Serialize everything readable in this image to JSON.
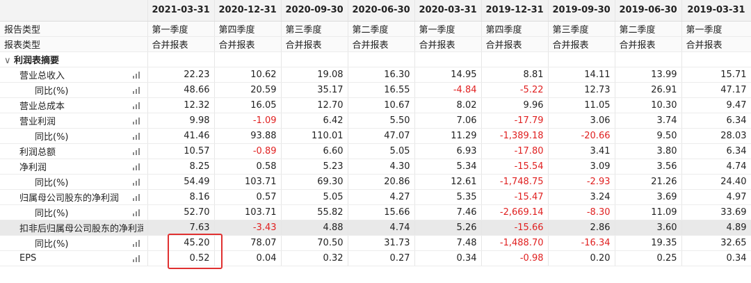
{
  "header": {
    "dates": [
      "2021-03-31",
      "2020-12-31",
      "2020-09-30",
      "2020-06-30",
      "2020-03-31",
      "2019-12-31",
      "2019-09-30",
      "2019-06-30",
      "2019-03-31"
    ]
  },
  "meta_rows": [
    {
      "label": "报告类型",
      "values": [
        "第一季度",
        "第四季度",
        "第三季度",
        "第二季度",
        "第一季度",
        "第四季度",
        "第三季度",
        "第二季度",
        "第一季度"
      ]
    },
    {
      "label": "报表类型",
      "values": [
        "合并报表",
        "合并报表",
        "合并报表",
        "合并报表",
        "合并报表",
        "合并报表",
        "合并报表",
        "合并报表",
        "合并报表"
      ]
    }
  ],
  "section": {
    "caret": "∨",
    "label": "利润表摘要"
  },
  "rows": [
    {
      "label": "营业总收入",
      "indent": 1,
      "values": [
        "22.23",
        "10.62",
        "19.08",
        "16.30",
        "14.95",
        "8.81",
        "14.11",
        "13.99",
        "15.71"
      ]
    },
    {
      "label": "同比(%)",
      "indent": 2,
      "values": [
        "48.66",
        "20.59",
        "35.17",
        "16.55",
        "-4.84",
        "-5.22",
        "12.73",
        "26.91",
        "47.17"
      ]
    },
    {
      "label": "营业总成本",
      "indent": 1,
      "values": [
        "12.32",
        "16.05",
        "12.70",
        "10.67",
        "8.02",
        "9.96",
        "11.05",
        "10.30",
        "9.47"
      ]
    },
    {
      "label": "营业利润",
      "indent": 1,
      "values": [
        "9.98",
        "-1.09",
        "6.42",
        "5.50",
        "7.06",
        "-17.79",
        "3.06",
        "3.74",
        "6.34"
      ]
    },
    {
      "label": "同比(%)",
      "indent": 2,
      "values": [
        "41.46",
        "93.88",
        "110.01",
        "47.07",
        "11.29",
        "-1,389.18",
        "-20.66",
        "9.50",
        "28.03"
      ]
    },
    {
      "label": "利润总额",
      "indent": 1,
      "values": [
        "10.57",
        "-0.89",
        "6.60",
        "5.05",
        "6.93",
        "-17.80",
        "3.41",
        "3.80",
        "6.34"
      ]
    },
    {
      "label": "净利润",
      "indent": 1,
      "values": [
        "8.25",
        "0.58",
        "5.23",
        "4.30",
        "5.34",
        "-15.54",
        "3.09",
        "3.56",
        "4.74"
      ]
    },
    {
      "label": "同比(%)",
      "indent": 2,
      "values": [
        "54.49",
        "103.71",
        "69.30",
        "20.86",
        "12.61",
        "-1,748.75",
        "-2.93",
        "21.26",
        "24.40"
      ]
    },
    {
      "label": "归属母公司股东的净利润",
      "indent": 1,
      "values": [
        "8.16",
        "0.57",
        "5.05",
        "4.27",
        "5.35",
        "-15.47",
        "3.24",
        "3.69",
        "4.97"
      ]
    },
    {
      "label": "同比(%)",
      "indent": 2,
      "values": [
        "52.70",
        "103.71",
        "55.82",
        "15.66",
        "7.46",
        "-2,669.14",
        "-8.30",
        "11.09",
        "33.69"
      ]
    },
    {
      "label": "扣非后归属母公司股东的净利润",
      "indent": 1,
      "highlight": true,
      "values": [
        "7.63",
        "-3.43",
        "4.88",
        "4.74",
        "5.26",
        "-15.66",
        "2.86",
        "3.60",
        "4.89"
      ]
    },
    {
      "label": "同比(%)",
      "indent": 2,
      "values": [
        "45.20",
        "78.07",
        "70.50",
        "31.73",
        "7.48",
        "-1,488.70",
        "-16.34",
        "19.35",
        "32.65"
      ]
    },
    {
      "label": "EPS",
      "indent": 1,
      "values": [
        "0.52",
        "0.04",
        "0.32",
        "0.27",
        "0.34",
        "-0.98",
        "0.20",
        "0.25",
        "0.34"
      ]
    }
  ],
  "colors": {
    "negative": "#e02020",
    "highlight_box": "#e03030",
    "header_bg": "#f3f3f3"
  },
  "icons": {
    "row_chart": "bar-chart-icon"
  }
}
